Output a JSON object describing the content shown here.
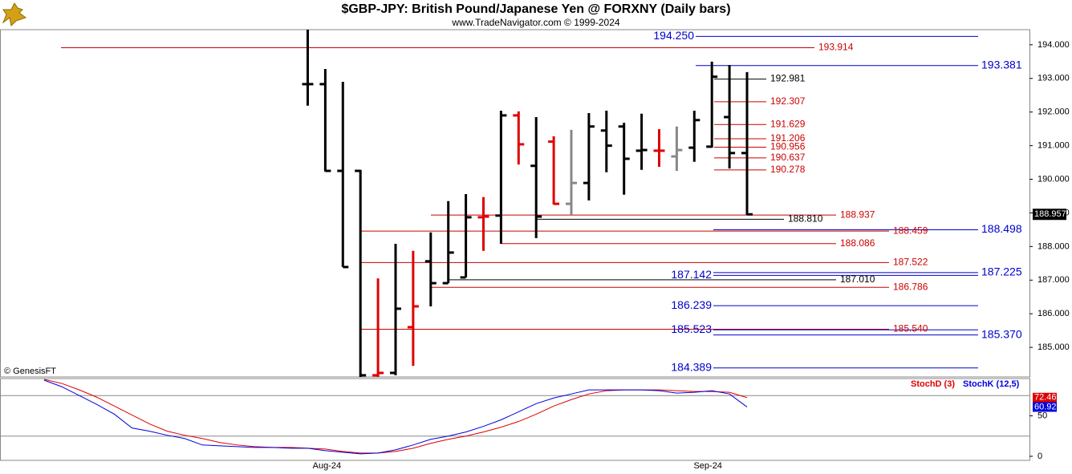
{
  "header": {
    "title": "$GBP-JPY:  British Pound/Japanese Yen @ FORXNY  (Daily bars)",
    "subtitle": "www.TradeNavigator.com © 1999-2024",
    "credit": "© GenesisFT"
  },
  "chart_data": [
    {
      "type": "ohlc",
      "open": [
        null,
        null,
        null,
        null,
        null,
        null,
        null,
        null,
        null,
        null,
        null,
        null,
        null,
        null,
        null,
        192.83,
        192.83,
        190.25,
        190.25,
        184.17,
        184.24,
        185.6,
        187.56,
        186.91,
        187.08,
        188.87,
        188.92,
        191.9,
        190.4,
        191.12,
        189.27,
        189.89,
        191.45,
        191.57,
        190.85,
        190.85,
        190.68,
        190.94,
        190.97,
        191.85,
        190.78
      ],
      "high": [
        null,
        null,
        null,
        null,
        null,
        null,
        null,
        null,
        null,
        null,
        null,
        null,
        null,
        null,
        null,
        194.45,
        193.28,
        192.9,
        190.28,
        187.05,
        188.08,
        187.87,
        188.42,
        189.35,
        189.56,
        189.47,
        192.04,
        192.02,
        191.85,
        191.28,
        191.47,
        191.97,
        192.04,
        191.68,
        191.95,
        191.49,
        191.57,
        192.04,
        193.5,
        193.4,
        193.19
      ],
      "low": [
        null,
        null,
        null,
        null,
        null,
        null,
        null,
        null,
        null,
        null,
        null,
        null,
        null,
        null,
        null,
        192.19,
        190.23,
        187.39,
        184.12,
        184.12,
        184.17,
        184.45,
        186.22,
        186.91,
        187.08,
        187.87,
        188.08,
        190.44,
        188.25,
        189.25,
        188.94,
        189.37,
        190.21,
        189.54,
        190.28,
        190.37,
        190.25,
        190.52,
        190.94,
        190.32,
        188.94
      ],
      "close": [
        null,
        null,
        null,
        null,
        null,
        null,
        null,
        null,
        null,
        null,
        null,
        null,
        null,
        null,
        null,
        192.83,
        190.25,
        187.39,
        184.17,
        184.24,
        186.15,
        186.22,
        186.91,
        187.82,
        188.87,
        188.89,
        191.9,
        191.04,
        188.89,
        189.27,
        189.89,
        191.57,
        191,
        190.61,
        190.87,
        190.85,
        190.87,
        191.76,
        193.05,
        190.78,
        188.957
      ],
      "colors": [
        null,
        null,
        null,
        null,
        null,
        null,
        null,
        null,
        null,
        null,
        null,
        null,
        null,
        null,
        null,
        "#000000",
        "#000000",
        "#000000",
        "#000000",
        "#e00000",
        "#000000",
        "#e00000",
        "#000000",
        "#000000",
        "#000000",
        "#e00000",
        "#000000",
        "#e00000",
        "#000000",
        "#e00000",
        "#888888",
        "#000000",
        "#000000",
        "#000000",
        "#000000",
        "#e00000",
        "#888888",
        "#000000",
        "#000000",
        "#000000",
        "#000000"
      ],
      "ylim": [
        184.12,
        194.45
      ],
      "yticks": [
        {
          "value": 185,
          "label": "185.000"
        },
        {
          "value": 186,
          "label": "186.000"
        },
        {
          "value": 187,
          "label": "187.000"
        },
        {
          "value": 188,
          "label": "188.000"
        },
        {
          "value": 189,
          "label": "189.000"
        },
        {
          "value": 190,
          "label": "190.000"
        },
        {
          "value": 191,
          "label": "191.000"
        },
        {
          "value": 192,
          "label": "192.000"
        },
        {
          "value": 193,
          "label": "193.000"
        },
        {
          "value": 194,
          "label": "194.000"
        }
      ],
      "levels": [
        {
          "value": 194.25,
          "label": "194.250",
          "color": "#0000cc"
        },
        {
          "value": 193.914,
          "color": "#cc0000"
        },
        {
          "value": 193.381,
          "color": "#0000cc"
        },
        {
          "value": 192.981,
          "color": "#000000"
        },
        {
          "value": 192.307,
          "color": "#cc0000"
        },
        {
          "value": 191.629,
          "color": "#cc0000"
        },
        {
          "value": 191.206,
          "color": "#cc0000"
        },
        {
          "value": 190.956,
          "color": "#cc0000"
        },
        {
          "value": 190.637,
          "color": "#cc0000"
        },
        {
          "value": 190.278,
          "color": "#cc0000"
        },
        {
          "value": 188.937,
          "color": "#cc0000"
        },
        {
          "value": 188.81,
          "label": "188.810",
          "color": "#000000"
        },
        {
          "value": 188.498,
          "color": "#0000cc"
        },
        {
          "value": 188.459,
          "color": "#cc0000"
        },
        {
          "value": 188.086,
          "color": "#cc0000"
        },
        {
          "value": 187.522,
          "color": "#cc0000"
        },
        {
          "value": 187.225,
          "color": "#0000cc"
        },
        {
          "value": 187.142,
          "color": "#0000cc"
        },
        {
          "value": 187.01,
          "label": "187.010",
          "color": "#000000"
        },
        {
          "value": 186.786,
          "color": "#cc0000"
        },
        {
          "value": 186.239,
          "color": "#0000cc"
        },
        {
          "value": 185.54,
          "label": "185.540",
          "color": "#cc0000"
        },
        {
          "value": 185.523,
          "color": "#0000cc"
        },
        {
          "value": 185.37,
          "label": "185.370",
          "color": "#0000cc"
        },
        {
          "value": 184.389,
          "color": "#0000cc"
        }
      ]
    },
    {
      "type": "line",
      "categories": [
        null,
        null,
        null,
        null,
        null,
        null,
        null,
        null,
        null,
        null,
        null,
        null,
        null,
        null,
        null,
        null,
        "Aug-24",
        null,
        null,
        null,
        null,
        null,
        null,
        null,
        null,
        null,
        null,
        null,
        null,
        null,
        null,
        null,
        null,
        null,
        null,
        null,
        null,
        null,
        "Sep-24",
        null,
        null
      ],
      "series": [
        {
          "name": "StochD (3)",
          "color": "#dd0000",
          "values": [
            95,
            90,
            82,
            73,
            62,
            51,
            40,
            31,
            26,
            22,
            17,
            14,
            12,
            11,
            11,
            10,
            9,
            6,
            4,
            4,
            6,
            10,
            16,
            21,
            25,
            30,
            36,
            43,
            52,
            62,
            70,
            77,
            81,
            82,
            82,
            82,
            81,
            80,
            80,
            79,
            72.46
          ]
        },
        {
          "name": "StochK (12,5)",
          "color": "#0000dd",
          "values": [
            94,
            86,
            75,
            64,
            52,
            35,
            31,
            26,
            22,
            14,
            13,
            12,
            11,
            11,
            10,
            10,
            7,
            5,
            3,
            4,
            8,
            14,
            21,
            25,
            30,
            37,
            45,
            55,
            65,
            72,
            77,
            82,
            82,
            82,
            82,
            81,
            78,
            79,
            81,
            77,
            60.92
          ]
        }
      ],
      "ylim": [
        -5,
        96
      ],
      "yticks": [
        0,
        50
      ],
      "hlines": [
        25,
        75
      ]
    }
  ]
}
